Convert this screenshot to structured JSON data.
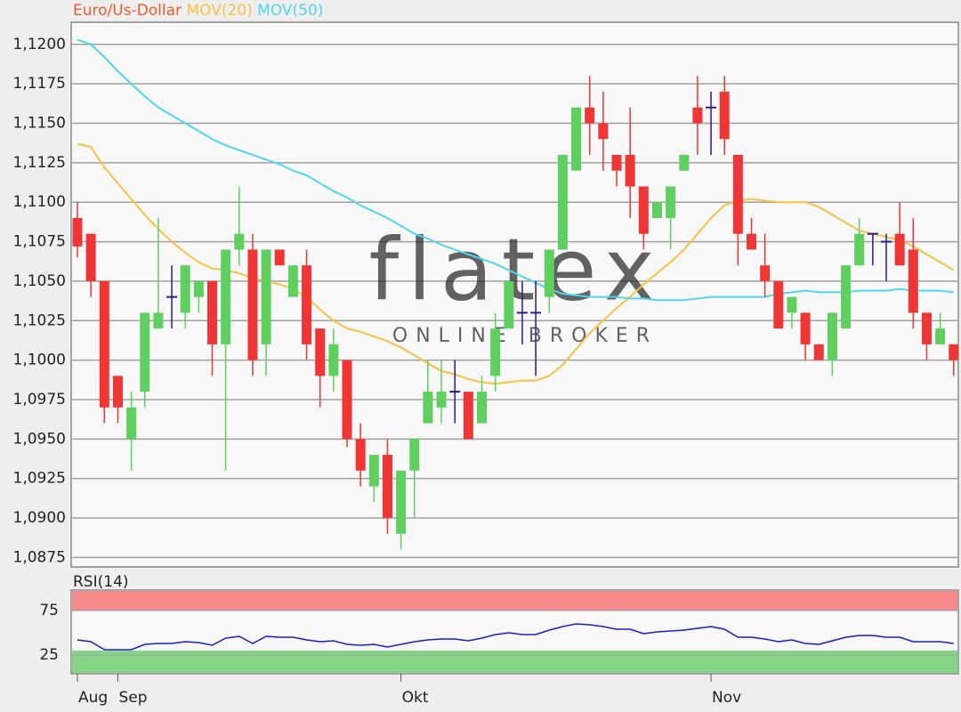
{
  "chart_data": [
    {
      "type": "candlestick",
      "name": "Euro/Us-Dollar",
      "name_color": "#f05a28",
      "up_color": "#5fcf5f",
      "down_color": "#f03535",
      "doji_color": "#2a1a8c",
      "categories": [
        "Aug",
        null,
        null,
        "Sep",
        null,
        null,
        null,
        null,
        null,
        null,
        null,
        null,
        null,
        null,
        null,
        null,
        null,
        null,
        null,
        null,
        null,
        null,
        null,
        null,
        "Okt",
        null,
        null,
        null,
        null,
        null,
        null,
        null,
        null,
        null,
        null,
        null,
        null,
        null,
        null,
        null,
        null,
        null,
        null,
        null,
        null,
        null,
        null,
        "Nov",
        null,
        null,
        null,
        null,
        null,
        null,
        null,
        null,
        null,
        null,
        null,
        null,
        null,
        null,
        null,
        null,
        null,
        null
      ],
      "open": [
        1.109,
        1.108,
        1.105,
        1.099,
        1.095,
        1.098,
        1.102,
        1.104,
        1.103,
        1.104,
        1.105,
        1.101,
        1.107,
        1.107,
        1.101,
        1.107,
        1.104,
        1.106,
        1.102,
        1.099,
        1.1,
        1.095,
        1.092,
        1.094,
        1.089,
        1.093,
        1.096,
        1.097,
        1.098,
        1.098,
        1.096,
        1.099,
        1.102,
        1.103,
        1.103,
        1.104,
        1.107,
        1.112,
        1.116,
        1.115,
        1.113,
        1.113,
        1.111,
        1.109,
        1.109,
        1.112,
        1.116,
        1.116,
        1.117,
        1.113,
        1.108,
        1.106,
        1.105,
        1.103,
        1.103,
        1.101,
        1.1,
        1.102,
        1.106,
        1.108,
        1.1075,
        1.108,
        1.107,
        1.103,
        1.101,
        1.101
      ],
      "high": [
        1.11,
        1.108,
        1.105,
        1.099,
        1.098,
        1.103,
        1.109,
        1.106,
        1.106,
        1.105,
        1.105,
        1.107,
        1.111,
        1.108,
        1.107,
        1.107,
        1.106,
        1.107,
        1.102,
        1.102,
        1.1,
        1.096,
        1.094,
        1.095,
        1.093,
        1.095,
        1.1,
        1.1,
        1.1,
        1.098,
        1.099,
        1.103,
        1.105,
        1.105,
        1.105,
        1.107,
        1.113,
        1.116,
        1.118,
        1.117,
        1.113,
        1.116,
        1.111,
        1.11,
        1.111,
        1.113,
        1.118,
        1.117,
        1.118,
        1.113,
        1.109,
        1.108,
        1.105,
        1.104,
        1.103,
        1.101,
        1.103,
        1.106,
        1.109,
        1.108,
        1.108,
        1.11,
        1.109,
        1.103,
        1.103,
        1.101
      ],
      "low": [
        1.1065,
        1.104,
        1.096,
        1.096,
        1.093,
        1.097,
        1.102,
        1.102,
        1.102,
        1.103,
        1.099,
        1.093,
        1.106,
        1.099,
        1.099,
        1.106,
        1.104,
        1.1,
        1.097,
        1.098,
        1.0945,
        1.092,
        1.091,
        1.089,
        1.088,
        1.09,
        1.096,
        1.096,
        1.096,
        1.095,
        1.096,
        1.098,
        1.102,
        1.101,
        1.099,
        1.103,
        1.107,
        1.112,
        1.113,
        1.112,
        1.111,
        1.109,
        1.107,
        1.109,
        1.107,
        1.112,
        1.113,
        1.113,
        1.113,
        1.106,
        1.107,
        1.104,
        1.102,
        1.102,
        1.1,
        1.1,
        1.099,
        1.102,
        1.106,
        1.106,
        1.105,
        1.106,
        1.102,
        1.1,
        1.101,
        1.099
      ],
      "close": [
        1.1072,
        1.105,
        1.097,
        1.097,
        1.097,
        1.103,
        1.103,
        1.104,
        1.106,
        1.105,
        1.101,
        1.107,
        1.108,
        1.1,
        1.107,
        1.106,
        1.106,
        1.101,
        1.099,
        1.101,
        1.095,
        1.093,
        1.094,
        1.09,
        1.093,
        1.095,
        1.098,
        1.098,
        1.098,
        1.095,
        1.098,
        1.102,
        1.105,
        1.103,
        1.103,
        1.107,
        1.113,
        1.116,
        1.115,
        1.114,
        1.112,
        1.111,
        1.108,
        1.11,
        1.111,
        1.113,
        1.115,
        1.116,
        1.114,
        1.108,
        1.107,
        1.105,
        1.102,
        1.104,
        1.101,
        1.1,
        1.103,
        1.106,
        1.108,
        1.108,
        1.1075,
        1.106,
        1.103,
        1.101,
        1.102,
        1.1
      ],
      "series": [
        {
          "name": "MOV(20)",
          "color": "#f5c242",
          "values": [
            1.1137,
            1.1135,
            1.1122,
            1.1112,
            1.1102,
            1.1092,
            1.1083,
            1.1075,
            1.1068,
            1.1062,
            1.1058,
            1.1057,
            1.1055,
            1.1052,
            1.105,
            1.1048,
            1.1045,
            1.104,
            1.1032,
            1.1025,
            1.102,
            1.1018,
            1.1015,
            1.1012,
            1.1008,
            1.1003,
            1.0998,
            1.0993,
            1.0991,
            1.0988,
            1.0986,
            1.0985,
            1.0986,
            1.0987,
            1.0987,
            1.099,
            1.0997,
            1.1007,
            1.1017,
            1.1025,
            1.1033,
            1.104,
            1.1048,
            1.1055,
            1.1062,
            1.107,
            1.108,
            1.109,
            1.1098,
            1.1101,
            1.1102,
            1.1101,
            1.11,
            1.11,
            1.11,
            1.1097,
            1.1092,
            1.1087,
            1.1082,
            1.108,
            1.1078,
            1.1076,
            1.1072,
            1.1067,
            1.1062,
            1.1057
          ]
        },
        {
          "name": "MOV(50)",
          "color": "#4dd6f0",
          "values": [
            1.1203,
            1.12,
            1.1192,
            1.1183,
            1.1175,
            1.1167,
            1.116,
            1.1155,
            1.115,
            1.1145,
            1.114,
            1.1136,
            1.1133,
            1.113,
            1.1127,
            1.1124,
            1.112,
            1.1117,
            1.1112,
            1.1107,
            1.1103,
            1.1098,
            1.1094,
            1.109,
            1.1085,
            1.108,
            1.1077,
            1.1073,
            1.107,
            1.1067,
            1.1064,
            1.1061,
            1.1057,
            1.1053,
            1.1049,
            1.1045,
            1.1042,
            1.1041,
            1.104,
            1.104,
            1.104,
            1.1039,
            1.1039,
            1.1038,
            1.1038,
            1.1038,
            1.1039,
            1.104,
            1.104,
            1.104,
            1.104,
            1.104,
            1.1042,
            1.1043,
            1.1044,
            1.1043,
            1.1043,
            1.1043,
            1.1044,
            1.1044,
            1.1044,
            1.1045,
            1.1044,
            1.1044,
            1.1044,
            1.1043
          ]
        }
      ],
      "ylim": [
        1.0869,
        1.1214
      ],
      "yticks": [
        {
          "value": 1.0875,
          "label": "1,0875"
        },
        {
          "value": 1.09,
          "label": "1,0900"
        },
        {
          "value": 1.0925,
          "label": "1,0925"
        },
        {
          "value": 1.095,
          "label": "1,0950"
        },
        {
          "value": 1.0975,
          "label": "1,0975"
        },
        {
          "value": 1.1,
          "label": "1,1000"
        },
        {
          "value": 1.1025,
          "label": "1,1025"
        },
        {
          "value": 1.105,
          "label": "1,1050"
        },
        {
          "value": 1.1075,
          "label": "1,1075"
        },
        {
          "value": 1.11,
          "label": "1,1100"
        },
        {
          "value": 1.1125,
          "label": "1,1125"
        },
        {
          "value": 1.115,
          "label": "1,1150"
        },
        {
          "value": 1.1175,
          "label": "1,1175"
        },
        {
          "value": 1.12,
          "label": "1,1200"
        }
      ],
      "grid": true,
      "watermark": "flatex",
      "watermark_sub": "ONLINE BROKER"
    },
    {
      "type": "line",
      "title": "RSI(14)",
      "color": "#1a1ad0",
      "values": [
        42,
        40,
        31,
        31,
        31,
        37,
        38,
        38,
        40,
        39,
        36,
        44,
        46,
        38,
        46,
        45,
        45,
        42,
        40,
        41,
        37,
        36,
        37,
        34,
        37,
        40,
        42,
        43,
        43,
        41,
        44,
        48,
        50,
        48,
        48,
        53,
        57,
        60,
        59,
        57,
        54,
        54,
        49,
        51,
        52,
        53,
        55,
        57,
        54,
        45,
        45,
        43,
        40,
        42,
        38,
        37,
        41,
        45,
        47,
        47,
        45,
        45,
        40,
        40,
        40,
        38
      ],
      "ylim": [
        0,
        100
      ],
      "yticks": [
        25,
        75
      ],
      "bands": [
        {
          "from": 75,
          "to": 100,
          "color": "#f58a8a"
        },
        {
          "from": 0,
          "to": 30,
          "color": "#86d486"
        }
      ]
    }
  ]
}
